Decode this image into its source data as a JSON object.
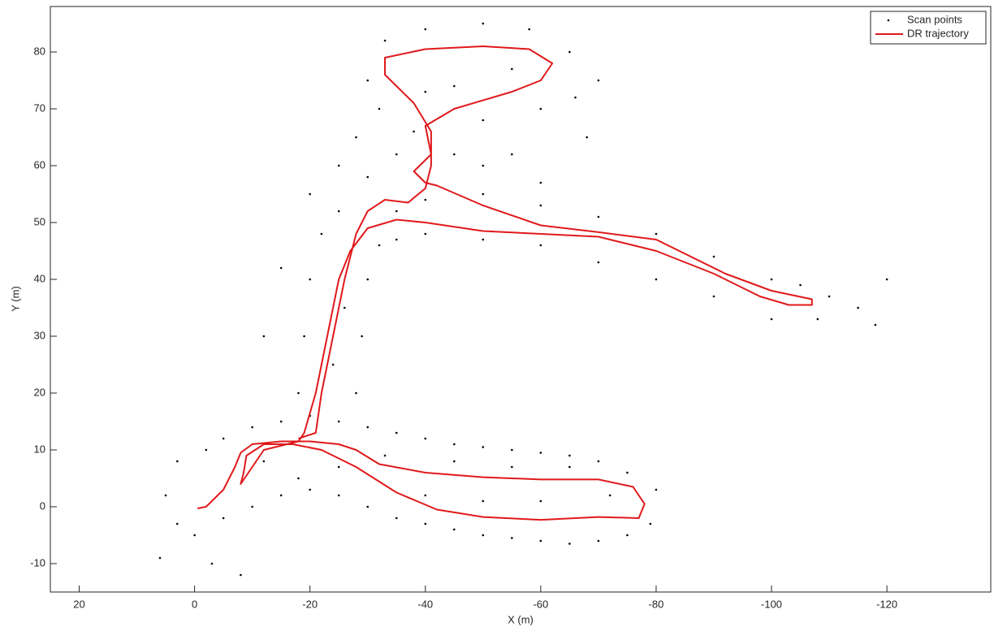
{
  "chart_data": {
    "type": "line",
    "xlabel": "X (m)",
    "ylabel": "Y (m)",
    "xlim": [
      25,
      -138
    ],
    "ylim": [
      -15,
      88
    ],
    "xticks": [
      20,
      0,
      -20,
      -40,
      -60,
      -80,
      -100,
      -120
    ],
    "yticks": [
      -10,
      0,
      10,
      20,
      30,
      40,
      50,
      60,
      70,
      80
    ],
    "grid": false,
    "legend": "northeast",
    "series": [
      {
        "name": "Scan points",
        "type": "scatter",
        "color": "#000000",
        "x": [
          -5,
          -10,
          -15,
          -20,
          -25,
          -30,
          -35,
          -40,
          -45,
          -50,
          -55,
          -60,
          -65,
          -70,
          -75,
          -80,
          -79,
          -75,
          -70,
          -65,
          -60,
          -55,
          -50,
          -45,
          -40,
          -35,
          -30,
          -25,
          -20,
          -15,
          -10,
          -5,
          0,
          3,
          5,
          3,
          -2,
          -12,
          -18,
          -25,
          -33,
          -45,
          -55,
          -65,
          -72,
          -60,
          -50,
          -40,
          -3,
          -8,
          6,
          -18,
          -19,
          -20,
          -22,
          -25,
          -28,
          -29,
          -30,
          -32,
          -24,
          -26,
          -35,
          -40,
          -50,
          -60,
          -70,
          -80,
          -90,
          -100,
          -105,
          -110,
          -108,
          -100,
          -90,
          -80,
          -70,
          -60,
          -50,
          -40,
          -35,
          -115,
          -118,
          -120,
          -30,
          -35,
          -38,
          -45,
          -50,
          -25,
          -28,
          -32,
          -30,
          -33,
          -40,
          -50,
          -58,
          -65,
          -66,
          -60,
          -50,
          -45,
          -55,
          -40,
          -70,
          -68,
          -55,
          -60,
          -20,
          -15,
          -12
        ],
        "values": [
          12,
          14,
          15,
          16,
          15,
          14,
          13,
          12,
          11,
          10.5,
          10,
          9.5,
          9,
          8,
          6,
          3,
          -3,
          -5,
          -6,
          -6.5,
          -6,
          -5.5,
          -5,
          -4,
          -3,
          -2,
          0,
          2,
          3,
          2,
          0,
          -2,
          -5,
          -3,
          2,
          8,
          10,
          8,
          5,
          7,
          9,
          8,
          7,
          7,
          2,
          1,
          1,
          2,
          -10,
          -12,
          -9,
          20,
          30,
          40,
          48,
          52,
          20,
          30,
          40,
          46,
          25,
          35,
          52,
          54,
          55,
          53,
          51,
          48,
          44,
          40,
          39,
          37,
          33,
          33,
          37,
          40,
          43,
          46,
          47,
          48,
          47,
          35,
          32,
          40,
          58,
          62,
          66,
          62,
          60,
          60,
          65,
          70,
          75,
          82,
          84,
          85,
          84,
          80,
          72,
          70,
          68,
          74,
          77,
          73,
          75,
          65,
          62,
          57,
          55,
          42,
          30
        ]
      },
      {
        "name": "DR trajectory",
        "type": "line",
        "color": "#e0191b",
        "x": [
          -0.5,
          -2,
          -5,
          -7,
          -8,
          -10,
          -15,
          -20,
          -25,
          -28,
          -32,
          -40,
          -50,
          -60,
          -70,
          -76,
          -78,
          -77,
          -70,
          -60,
          -50,
          -42,
          -35,
          -28,
          -22,
          -17,
          -12,
          -9,
          -8.5,
          -8,
          -12,
          -18,
          -19,
          -21,
          -23,
          -25,
          -27,
          -30,
          -35,
          -40,
          -50,
          -60,
          -70,
          -80,
          -90,
          -98,
          -103,
          -107,
          -107,
          -100,
          -92,
          -80,
          -70,
          -60,
          -50,
          -42,
          -40,
          -38,
          -41,
          -40,
          -45,
          -55,
          -60,
          -62,
          -58,
          -50,
          -40,
          -33,
          -33,
          -38,
          -41,
          -41,
          -40,
          -37,
          -33,
          -30,
          -28,
          -26,
          -24,
          -22,
          -21,
          -18
        ],
        "values": [
          -0.3,
          0,
          3,
          7,
          9.5,
          11,
          11.5,
          11.5,
          11,
          10,
          7.5,
          6,
          5.2,
          4.8,
          4.8,
          3.5,
          0.5,
          -2,
          -1.8,
          -2.3,
          -1.8,
          -0.5,
          2.5,
          7,
          10,
          11,
          11,
          9,
          6,
          4,
          10,
          11.5,
          13,
          20,
          30,
          40,
          45,
          49,
          50.5,
          50,
          48.5,
          48,
          47.5,
          45,
          41,
          37,
          35.5,
          35.5,
          36.5,
          38,
          41,
          47,
          48.3,
          49.5,
          53,
          56.5,
          57,
          59,
          62,
          67,
          70,
          73,
          75,
          78,
          80.5,
          81,
          80.5,
          79,
          76,
          71,
          66,
          60,
          56,
          53.5,
          54,
          52,
          48,
          40,
          30,
          20,
          13,
          12
        ]
      }
    ]
  }
}
